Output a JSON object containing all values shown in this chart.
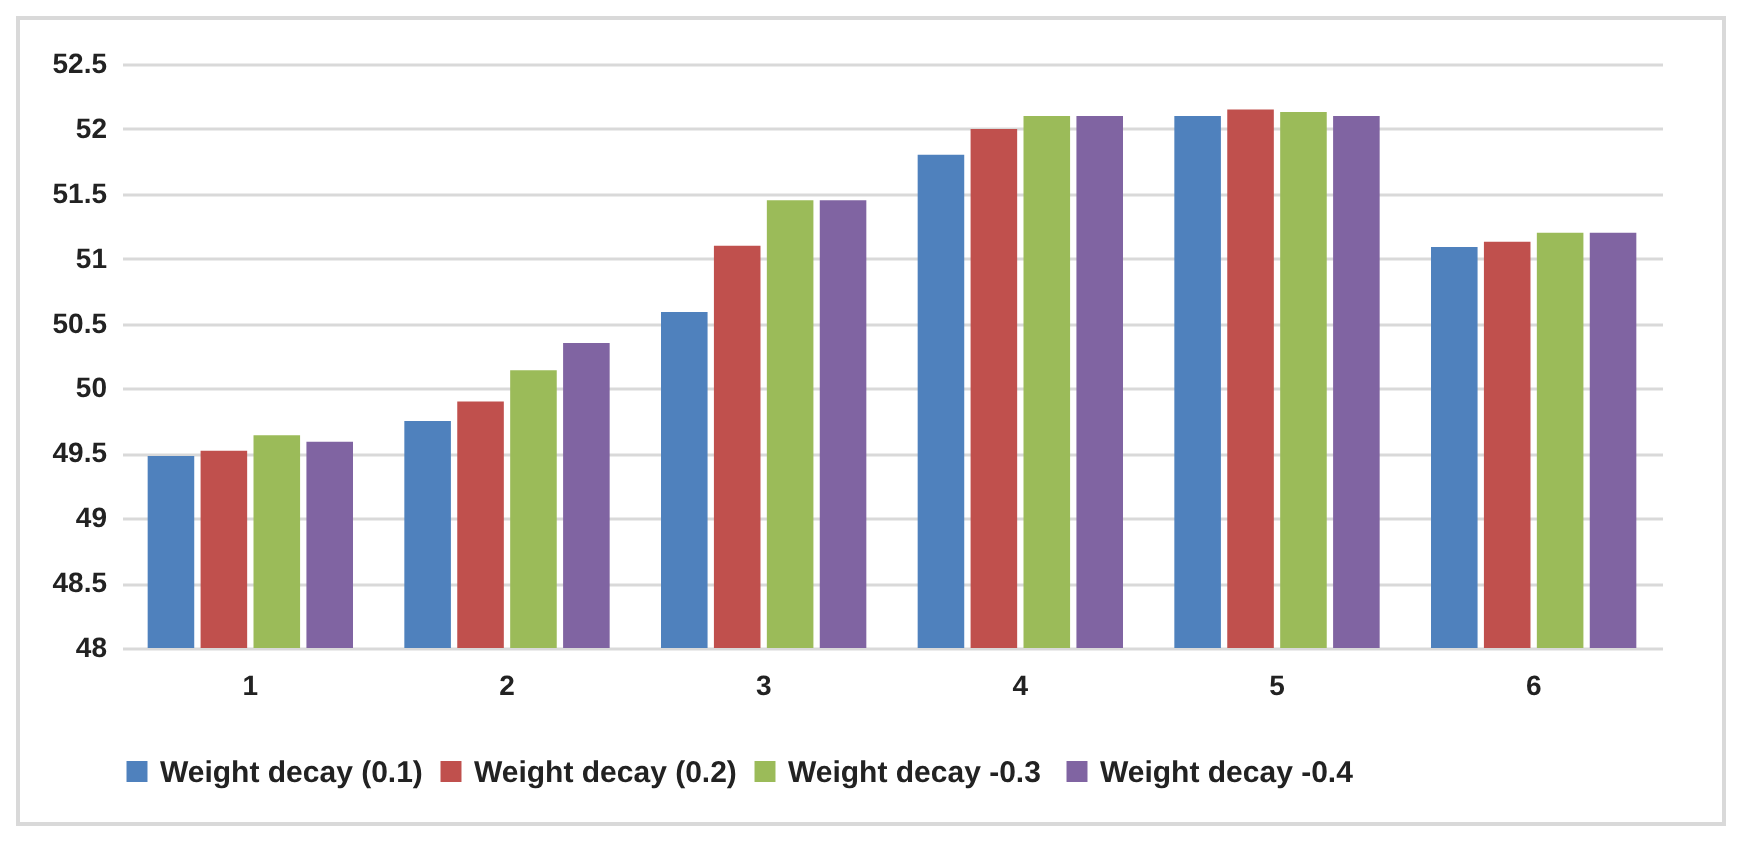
{
  "chart_data": {
    "type": "bar",
    "categories": [
      "1",
      "2",
      "3",
      "4",
      "5",
      "6"
    ],
    "series": [
      {
        "name": "Weight decay (0.1)",
        "color": "#4f81bd",
        "values": [
          49.48,
          49.75,
          50.59,
          51.8,
          52.1,
          51.09
        ]
      },
      {
        "name": "Weight decay (0.2)",
        "color": "#c0504d",
        "values": [
          49.52,
          49.9,
          51.1,
          52.0,
          52.15,
          51.13
        ]
      },
      {
        "name": "Weight decay  -0.3",
        "color": "#9bbb59",
        "values": [
          49.64,
          50.14,
          51.45,
          52.1,
          52.13,
          51.2
        ]
      },
      {
        "name": "Weight decay -0.4",
        "color": "#8064a2",
        "values": [
          49.59,
          50.35,
          51.45,
          52.1,
          52.1,
          51.2
        ]
      }
    ],
    "ylim": [
      48,
      52.5
    ],
    "yticks": [
      48,
      48.5,
      49,
      49.5,
      50,
      50.5,
      51,
      51.5,
      52,
      52.5
    ],
    "grid": "y",
    "legend": "bottom"
  }
}
